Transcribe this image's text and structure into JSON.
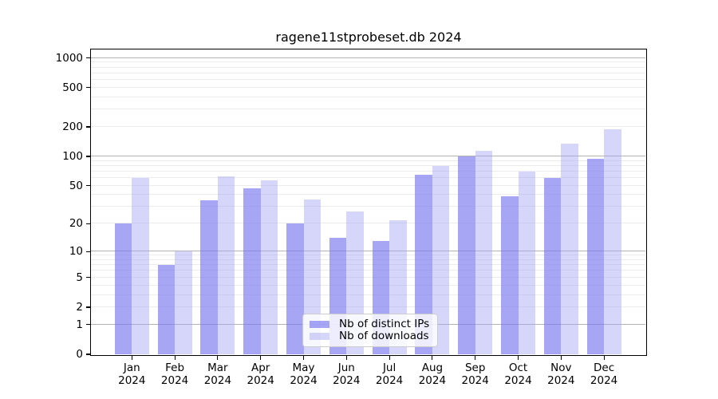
{
  "chart_data": {
    "type": "bar",
    "title": "ragene11stprobeset.db 2024",
    "categories": [
      "Jan 2024",
      "Feb 2024",
      "Mar 2024",
      "Apr 2024",
      "May 2024",
      "Jun 2024",
      "Jul 2024",
      "Aug 2024",
      "Sep 2024",
      "Oct 2024",
      "Nov 2024",
      "Dec 2024"
    ],
    "x_months": [
      "Jan",
      "Feb",
      "Mar",
      "Apr",
      "May",
      "Jun",
      "Jul",
      "Aug",
      "Sep",
      "Oct",
      "Nov",
      "Dec"
    ],
    "x_year": "2024",
    "series": [
      {
        "name": "Nb of distinct IPs",
        "values": [
          20,
          7,
          35,
          47,
          20,
          14,
          13,
          65,
          100,
          39,
          60,
          94
        ]
      },
      {
        "name": "Nb of downloads",
        "values": [
          60,
          10,
          63,
          57,
          36,
          27,
          22,
          80,
          115,
          70,
          135,
          190
        ]
      }
    ],
    "yscale": "log1p",
    "yticks": [
      0,
      1,
      2,
      5,
      10,
      20,
      50,
      100,
      200,
      500,
      1000
    ],
    "ylim": [
      0,
      1240
    ],
    "grid": true,
    "legend_position": "inside lower-center"
  },
  "colors": {
    "bar_ips": "rgba(120,120,240,0.66)",
    "bar_downloads": "rgba(165,165,245,0.45)",
    "grid_major": "#b3b3b3",
    "grid_minor": "#ececec",
    "spine": "#000000",
    "text": "#000000",
    "legend_border": "#cccccc",
    "legend_bg": "rgba(255,255,255,0.8)"
  }
}
